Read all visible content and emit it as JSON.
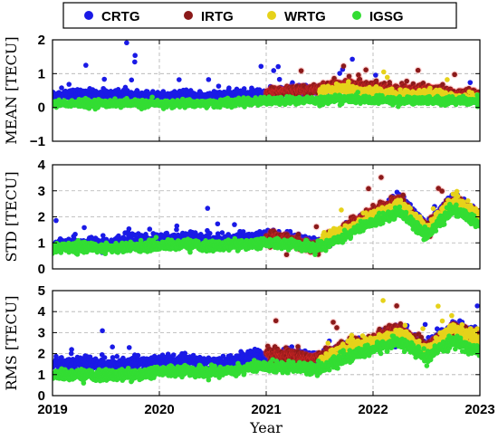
{
  "legend": {
    "placement": "top",
    "entries": [
      {
        "name": "CRTG",
        "color": "#1a1ae6"
      },
      {
        "name": "IRTG",
        "color": "#8b1a1a"
      },
      {
        "name": "WRTG",
        "color": "#e6d21a"
      },
      {
        "name": "IGSG",
        "color": "#33dd33"
      }
    ]
  },
  "xaxis": {
    "label": "Year",
    "range": [
      2019,
      2023
    ],
    "ticks": [
      {
        "value": 2019,
        "label": "2019"
      },
      {
        "value": 2020,
        "label": "2020"
      },
      {
        "value": 2021,
        "label": "2021"
      },
      {
        "value": 2022,
        "label": "2022"
      },
      {
        "value": 2023,
        "label": "2023"
      }
    ]
  },
  "colors": {
    "CRTG": "#1a1ae6",
    "IRTG": "#8b1a1a",
    "IRTG_glow": "#ff3030",
    "WRTG": "#e6d21a",
    "IGSG": "#33dd33",
    "grid": "#b0b0b0"
  },
  "chart_data": [
    {
      "type": "scatter",
      "ylabel": "MEAN [TECU]",
      "ylim": [
        -1,
        2
      ],
      "yticks": [
        {
          "value": -1,
          "label": "−1"
        },
        {
          "value": 0,
          "label": "0"
        },
        {
          "value": 1,
          "label": "1"
        },
        {
          "value": 2,
          "label": "2"
        }
      ],
      "grid": true,
      "series": [
        {
          "name": "CRTG",
          "x": [
            2019.0,
            2019.25,
            2019.5,
            2019.75,
            2020.0,
            2020.25,
            2020.5,
            2020.75,
            2021.0,
            2021.25,
            2021.5,
            2021.75,
            2022.0,
            2022.25,
            2022.5,
            2022.75,
            2023.0
          ],
          "y": [
            0.35,
            0.4,
            0.38,
            0.42,
            0.3,
            0.35,
            0.33,
            0.38,
            0.42,
            0.5,
            0.55,
            0.6,
            0.5,
            0.45,
            0.4,
            0.3,
            0.25
          ]
        },
        {
          "name": "IRTG",
          "x": [
            2021.0,
            2021.25,
            2021.5,
            2021.75,
            2022.0,
            2022.25,
            2022.5,
            2022.75,
            2023.0
          ],
          "y": [
            0.45,
            0.5,
            0.55,
            0.7,
            0.6,
            0.5,
            0.55,
            0.4,
            0.35
          ]
        },
        {
          "name": "WRTG",
          "x": [
            2021.5,
            2021.75,
            2022.0,
            2022.25,
            2022.5,
            2022.75,
            2023.0
          ],
          "y": [
            0.45,
            0.55,
            0.45,
            0.35,
            0.4,
            0.3,
            0.25
          ]
        },
        {
          "name": "IGSG",
          "x": [
            2019.0,
            2019.25,
            2019.5,
            2019.75,
            2020.0,
            2020.25,
            2020.5,
            2020.75,
            2021.0,
            2021.25,
            2021.5,
            2021.75,
            2022.0,
            2022.25,
            2022.5,
            2022.75,
            2023.0
          ],
          "y": [
            0.12,
            0.12,
            0.12,
            0.12,
            0.1,
            0.12,
            0.12,
            0.15,
            0.18,
            0.2,
            0.22,
            0.25,
            0.22,
            0.2,
            0.22,
            0.2,
            0.18
          ]
        }
      ]
    },
    {
      "type": "scatter",
      "ylabel": "STD [TECU]",
      "ylim": [
        0,
        4
      ],
      "yticks": [
        {
          "value": 0,
          "label": "0"
        },
        {
          "value": 1,
          "label": "1"
        },
        {
          "value": 2,
          "label": "2"
        },
        {
          "value": 3,
          "label": "3"
        },
        {
          "value": 4,
          "label": "4"
        }
      ],
      "grid": true,
      "series": [
        {
          "name": "CRTG",
          "x": [
            2019.0,
            2019.25,
            2019.5,
            2019.75,
            2020.0,
            2020.25,
            2020.5,
            2020.75,
            2021.0,
            2021.25,
            2021.5,
            2021.75,
            2022.0,
            2022.25,
            2022.5,
            2022.75,
            2023.0
          ],
          "y": [
            0.9,
            1.0,
            0.95,
            1.05,
            1.15,
            1.2,
            1.05,
            1.15,
            1.25,
            1.15,
            0.95,
            1.5,
            2.0,
            2.7,
            1.6,
            2.7,
            2.0
          ]
        },
        {
          "name": "IRTG",
          "x": [
            2021.0,
            2021.25,
            2021.5,
            2021.75,
            2022.0,
            2022.25,
            2022.5,
            2022.75,
            2023.0
          ],
          "y": [
            1.2,
            1.1,
            0.8,
            1.6,
            2.1,
            2.6,
            1.5,
            2.6,
            2.0
          ]
        },
        {
          "name": "WRTG",
          "x": [
            2021.5,
            2021.75,
            2022.0,
            2022.25,
            2022.5,
            2022.75,
            2023.0
          ],
          "y": [
            1.0,
            1.5,
            2.0,
            2.5,
            1.5,
            2.6,
            2.0
          ]
        },
        {
          "name": "IGSG",
          "x": [
            2019.0,
            2019.25,
            2019.5,
            2019.75,
            2020.0,
            2020.25,
            2020.5,
            2020.75,
            2021.0,
            2021.25,
            2021.5,
            2021.75,
            2022.0,
            2022.25,
            2022.5,
            2022.75,
            2023.0
          ],
          "y": [
            0.8,
            0.85,
            0.8,
            0.85,
            0.9,
            0.95,
            0.85,
            0.95,
            1.0,
            0.95,
            0.8,
            1.3,
            1.8,
            2.2,
            1.3,
            2.3,
            1.7
          ]
        }
      ]
    },
    {
      "type": "scatter",
      "ylabel": "RMS [TECU]",
      "ylim": [
        0,
        5
      ],
      "yticks": [
        {
          "value": 0,
          "label": "0"
        },
        {
          "value": 1,
          "label": "1"
        },
        {
          "value": 2,
          "label": "2"
        },
        {
          "value": 3,
          "label": "3"
        },
        {
          "value": 4,
          "label": "4"
        },
        {
          "value": 5,
          "label": "5"
        }
      ],
      "grid": true,
      "series": [
        {
          "name": "CRTG",
          "x": [
            2019.0,
            2019.25,
            2019.5,
            2019.75,
            2020.0,
            2020.25,
            2020.5,
            2020.75,
            2021.0,
            2021.25,
            2021.5,
            2021.75,
            2022.0,
            2022.25,
            2022.5,
            2022.75,
            2023.0
          ],
          "y": [
            1.5,
            1.6,
            1.4,
            1.55,
            1.6,
            1.65,
            1.5,
            1.7,
            1.9,
            1.9,
            1.8,
            2.3,
            2.5,
            3.2,
            2.3,
            3.3,
            2.8
          ]
        },
        {
          "name": "IRTG",
          "x": [
            2021.0,
            2021.25,
            2021.5,
            2021.75,
            2022.0,
            2022.25,
            2022.5,
            2022.75,
            2023.0
          ],
          "y": [
            1.9,
            1.85,
            1.75,
            2.3,
            2.6,
            3.2,
            2.2,
            3.2,
            2.7
          ]
        },
        {
          "name": "WRTG",
          "x": [
            2021.5,
            2021.75,
            2022.0,
            2022.25,
            2022.5,
            2022.75,
            2023.0
          ],
          "y": [
            1.6,
            2.2,
            2.5,
            3.0,
            2.1,
            3.2,
            2.6
          ]
        },
        {
          "name": "IGSG",
          "x": [
            2019.0,
            2019.25,
            2019.5,
            2019.75,
            2020.0,
            2020.25,
            2020.5,
            2020.75,
            2021.0,
            2021.25,
            2021.5,
            2021.75,
            2022.0,
            2022.25,
            2022.5,
            2022.75,
            2023.0
          ],
          "y": [
            1.0,
            1.0,
            0.95,
            1.0,
            1.15,
            1.2,
            1.1,
            1.25,
            1.4,
            1.35,
            1.3,
            1.8,
            2.2,
            2.6,
            1.8,
            2.6,
            2.1
          ]
        }
      ]
    }
  ]
}
